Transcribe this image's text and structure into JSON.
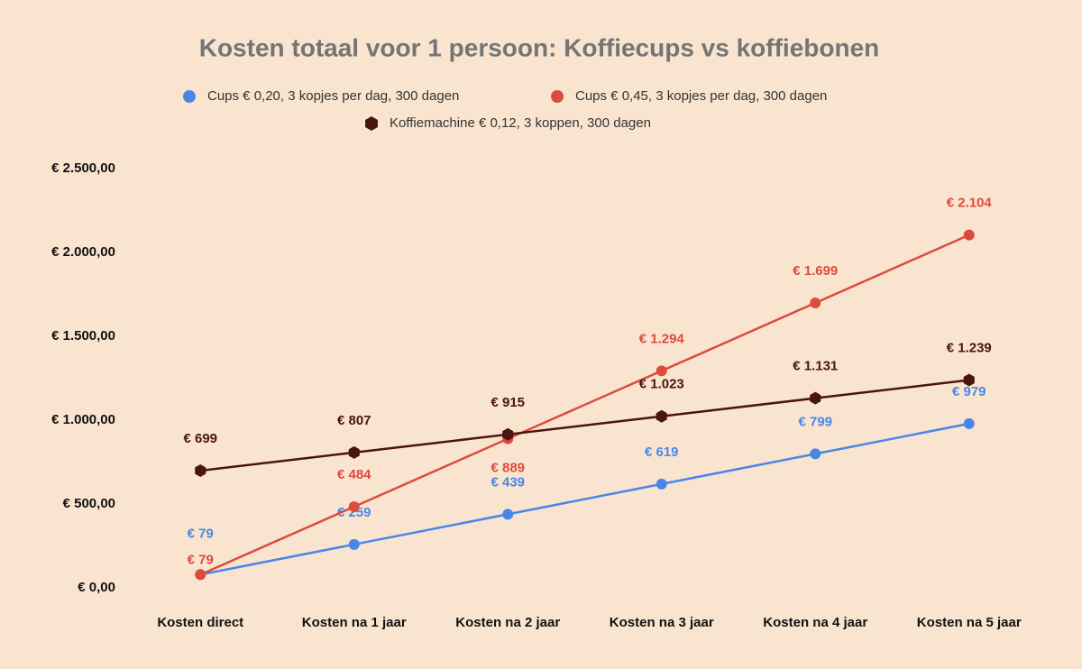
{
  "chart_data": {
    "type": "line",
    "title": "Kosten totaal voor 1 persoon: Koffiecups vs koffiebonen",
    "categories": [
      "Kosten direct",
      "Kosten na 1 jaar",
      "Kosten na 2 jaar",
      "Kosten na 3 jaar",
      "Kosten na 4 jaar",
      "Kosten na 5 jaar"
    ],
    "series": [
      {
        "name": "Cups € 0,20, 3 kopjes per dag, 300 dagen",
        "color": "#4a86e8",
        "marker": "circle",
        "values": [
          79,
          259,
          439,
          619,
          799,
          979
        ],
        "value_labels": [
          "€ 79",
          "€ 259",
          "€ 439",
          "€ 619",
          "€ 799",
          "€ 979"
        ]
      },
      {
        "name": "Cups € 0,45, 3 kopjes per dag, 300 dagen",
        "color": "#dd4b3e",
        "marker": "circle",
        "values": [
          79,
          484,
          889,
          1294,
          1699,
          2104
        ],
        "value_labels": [
          "€ 79",
          "€ 484",
          "€ 889",
          "€ 1.294",
          "€ 1.699",
          "€ 2.104"
        ]
      },
      {
        "name": "Koffiemachine € 0,12, 3 koppen, 300 dagen",
        "color": "#4a1410",
        "marker": "hexagon",
        "values": [
          699,
          807,
          915,
          1023,
          1131,
          1239
        ],
        "value_labels": [
          "€ 699",
          "€ 807",
          "€ 915",
          "€ 1.023",
          "€ 1.131",
          "€ 1.239"
        ]
      }
    ],
    "ylim": [
      0,
      2500
    ],
    "yticks": [
      {
        "value": 0,
        "label": "€ 0,00"
      },
      {
        "value": 500,
        "label": "€ 500,00"
      },
      {
        "value": 1000,
        "label": "€ 1.000,00"
      },
      {
        "value": 1500,
        "label": "€ 1.500,00"
      },
      {
        "value": 2000,
        "label": "€ 2.000,00"
      },
      {
        "value": 2500,
        "label": "€ 2.500,00"
      }
    ],
    "grid": false
  }
}
